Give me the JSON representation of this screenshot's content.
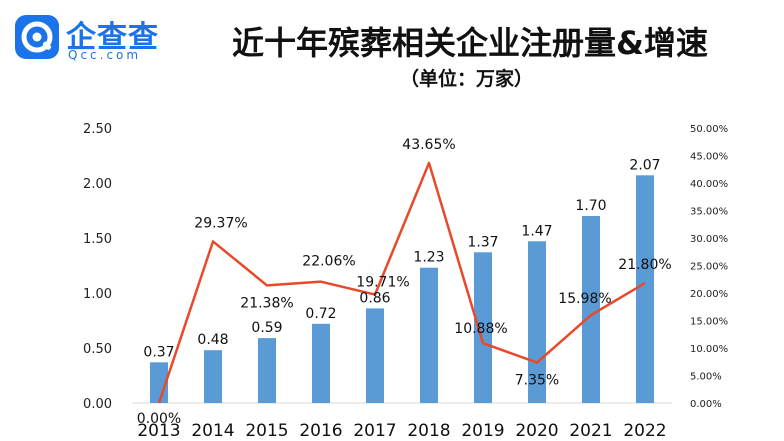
{
  "logo": {
    "name": "企查查",
    "domain": "Qcc.com"
  },
  "title": "近十年殡葬相关企业注册量&增速",
  "subtitle": "（单位：万家）",
  "colors": {
    "bar": "#5b9bd5",
    "line": "#e8492a",
    "brand": "#1a73e8"
  },
  "chart_data": {
    "type": "bar",
    "categories": [
      "2013",
      "2014",
      "2015",
      "2016",
      "2017",
      "2018",
      "2019",
      "2020",
      "2021",
      "2022"
    ],
    "series": [
      {
        "values": [
          0.37,
          0.48,
          0.59,
          0.72,
          0.86,
          1.23,
          1.37,
          1.47,
          1.7,
          2.07
        ]
      },
      {
        "type": "line",
        "axis": "right",
        "values": [
          0.0,
          29.37,
          21.38,
          22.06,
          19.71,
          43.65,
          10.88,
          7.35,
          15.98,
          21.8
        ]
      }
    ],
    "bar_labels": [
      "0.37",
      "0.48",
      "0.59",
      "0.72",
      "0.86",
      "1.23",
      "1.37",
      "1.47",
      "1.70",
      "2.07"
    ],
    "line_labels": [
      "0.00%",
      "29.37%",
      "21.38%",
      "22.06%",
      "19.71%",
      "43.65%",
      "10.88%",
      "7.35%",
      "15.98%",
      "21.80%"
    ],
    "ylim": [
      0,
      2.5
    ],
    "yticks": [
      "0.00",
      "0.50",
      "1.00",
      "1.50",
      "2.00",
      "2.50"
    ],
    "y2lim": [
      0,
      50
    ],
    "y2ticks": [
      "0.00%",
      "5.00%",
      "10.00%",
      "15.00%",
      "20.00%",
      "25.00%",
      "30.00%",
      "35.00%",
      "40.00%",
      "45.00%",
      "50.00%"
    ],
    "grid": false,
    "legend": "none"
  }
}
